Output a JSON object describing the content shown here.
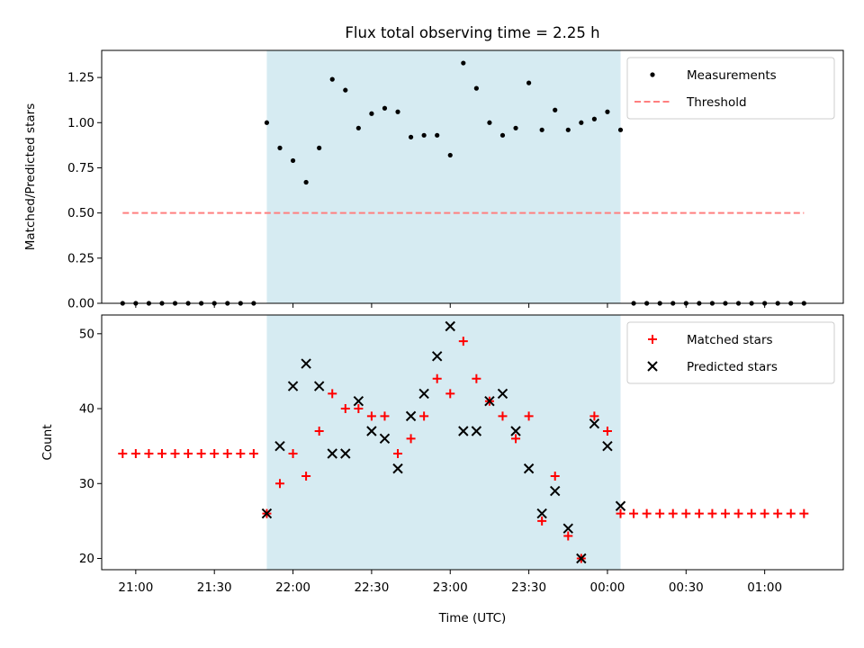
{
  "chart_data": [
    {
      "type": "scatter",
      "title": "Flux total observing time = 2.25 h",
      "xlabel": "",
      "ylabel": "Matched/Predicted stars",
      "ylim": [
        0,
        1.4
      ],
      "xlim": [
        "20:47",
        "01:30"
      ],
      "yticks": [
        "0.00",
        "0.25",
        "0.50",
        "0.75",
        "1.00",
        "1.25"
      ],
      "shaded_region": {
        "from": "21:50",
        "to": "00:05",
        "color": "#add8e6"
      },
      "legend": {
        "position": "top-right",
        "entries": [
          "Measurements",
          "Threshold"
        ]
      },
      "series": [
        {
          "name": "Measurements",
          "marker": "dot",
          "color": "#000000",
          "x": [
            "20:55",
            "21:00",
            "21:05",
            "21:10",
            "21:15",
            "21:20",
            "21:25",
            "21:30",
            "21:35",
            "21:40",
            "21:45",
            "21:50",
            "21:55",
            "22:00",
            "22:05",
            "22:10",
            "22:15",
            "22:20",
            "22:25",
            "22:30",
            "22:35",
            "22:40",
            "22:45",
            "22:50",
            "22:55",
            "23:00",
            "23:05",
            "23:10",
            "23:15",
            "23:20",
            "23:25",
            "23:30",
            "23:35",
            "23:40",
            "23:45",
            "23:50",
            "23:55",
            "00:00",
            "00:05",
            "00:10",
            "00:15",
            "00:20",
            "00:25",
            "00:30",
            "00:35",
            "00:40",
            "00:45",
            "00:50",
            "00:55",
            "01:00",
            "01:05",
            "01:10",
            "01:15"
          ],
          "y": [
            0,
            0,
            0,
            0,
            0,
            0,
            0,
            0,
            0,
            0,
            0,
            1.0,
            0.86,
            0.79,
            0.67,
            0.86,
            1.24,
            1.18,
            0.97,
            1.05,
            1.08,
            1.06,
            0.92,
            0.93,
            0.93,
            0.82,
            1.33,
            1.19,
            1.0,
            0.93,
            0.97,
            1.22,
            0.96,
            1.07,
            0.96,
            1.0,
            1.02,
            1.06,
            0.96,
            0,
            0,
            0,
            0,
            0,
            0,
            0,
            0,
            0,
            0,
            0,
            0,
            0,
            0
          ]
        },
        {
          "name": "Threshold",
          "marker": "dashed-line",
          "color": "#ff7f7f",
          "x": [
            "20:55",
            "01:15"
          ],
          "y": [
            0.5,
            0.5
          ]
        }
      ]
    },
    {
      "type": "scatter",
      "title": "",
      "xlabel": "Time (UTC)",
      "ylabel": "Count",
      "ylim": [
        18.5,
        52.5
      ],
      "yticks": [
        "20",
        "30",
        "40",
        "50"
      ],
      "xticks": [
        "21:00",
        "21:30",
        "22:00",
        "22:30",
        "23:00",
        "23:30",
        "00:00",
        "00:30",
        "01:00"
      ],
      "legend": {
        "position": "top-right",
        "entries": [
          "Matched stars",
          "Predicted stars"
        ]
      },
      "series": [
        {
          "name": "Matched stars",
          "marker": "plus",
          "color": "#ff0000",
          "x": [
            "20:55",
            "21:00",
            "21:05",
            "21:10",
            "21:15",
            "21:20",
            "21:25",
            "21:30",
            "21:35",
            "21:40",
            "21:45",
            "21:50",
            "21:55",
            "22:00",
            "22:05",
            "22:10",
            "22:15",
            "22:20",
            "22:25",
            "22:30",
            "22:35",
            "22:40",
            "22:45",
            "22:50",
            "22:55",
            "23:00",
            "23:05",
            "23:10",
            "23:15",
            "23:20",
            "23:25",
            "23:30",
            "23:35",
            "23:40",
            "23:45",
            "23:50",
            "23:55",
            "00:00",
            "00:05",
            "00:10",
            "00:15",
            "00:20",
            "00:25",
            "00:30",
            "00:35",
            "00:40",
            "00:45",
            "00:50",
            "00:55",
            "01:00",
            "01:05",
            "01:10",
            "01:15"
          ],
          "y": [
            34,
            34,
            34,
            34,
            34,
            34,
            34,
            34,
            34,
            34,
            34,
            26,
            30,
            34,
            31,
            37,
            42,
            40,
            40,
            39,
            39,
            34,
            36,
            39,
            44,
            42,
            49,
            44,
            41,
            39,
            36,
            39,
            25,
            31,
            23,
            20,
            39,
            37,
            26,
            26,
            26,
            26,
            26,
            26,
            26,
            26,
            26,
            26,
            26,
            26,
            26,
            26,
            26
          ]
        },
        {
          "name": "Predicted stars",
          "marker": "x",
          "color": "#000000",
          "x": [
            "21:50",
            "21:55",
            "22:00",
            "22:05",
            "22:10",
            "22:15",
            "22:20",
            "22:25",
            "22:30",
            "22:35",
            "22:40",
            "22:45",
            "22:50",
            "22:55",
            "23:00",
            "23:05",
            "23:10",
            "23:15",
            "23:20",
            "23:25",
            "23:30",
            "23:35",
            "23:40",
            "23:45",
            "23:50",
            "23:55",
            "00:00",
            "00:05"
          ],
          "y": [
            26,
            35,
            43,
            46,
            43,
            34,
            34,
            41,
            37,
            36,
            32,
            39,
            42,
            47,
            51,
            37,
            37,
            41,
            42,
            37,
            32,
            26,
            29,
            24,
            20,
            38,
            35,
            27
          ]
        }
      ]
    }
  ]
}
